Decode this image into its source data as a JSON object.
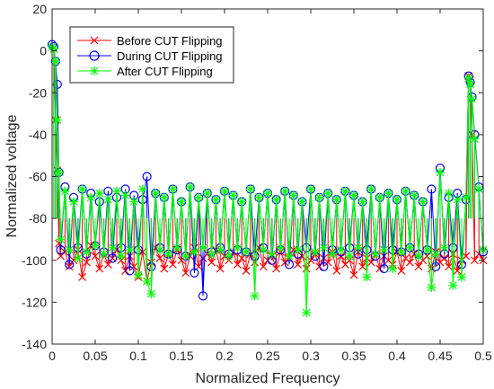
{
  "chart_data": {
    "type": "line",
    "title": "",
    "xlabel": "Normalized Frequency",
    "ylabel": "Normalized voltage",
    "xlim": [
      0,
      0.5
    ],
    "ylim": [
      -140,
      20
    ],
    "xticks": [
      0,
      0.05,
      0.1,
      0.15,
      0.2,
      0.25,
      0.3,
      0.35,
      0.4,
      0.45,
      0.5
    ],
    "xtick_labels": [
      "0",
      "0.05",
      "0.1",
      "0.15",
      "0.2",
      "0.25",
      "0.3",
      "0.35",
      "0.4",
      "0.45",
      "0.5"
    ],
    "yticks": [
      20,
      0,
      -20,
      -40,
      -60,
      -80,
      -100,
      -120,
      -140
    ],
    "ytick_labels": [
      "20",
      "0",
      "-20",
      "-40",
      "-60",
      "-80",
      "-100",
      "-120",
      "-140"
    ],
    "grid": false,
    "legend_position": "top-left",
    "baseline": -80,
    "series": [
      {
        "name": "Before CUT Flipping",
        "color": "#ff0000",
        "marker": "x",
        "x": [
          0.0,
          0.002,
          0.004,
          0.006,
          0.008,
          0.01,
          0.015,
          0.02,
          0.025,
          0.03,
          0.035,
          0.04,
          0.045,
          0.05,
          0.055,
          0.06,
          0.065,
          0.07,
          0.075,
          0.08,
          0.085,
          0.09,
          0.095,
          0.1,
          0.105,
          0.11,
          0.115,
          0.12,
          0.125,
          0.13,
          0.135,
          0.14,
          0.145,
          0.15,
          0.155,
          0.16,
          0.165,
          0.17,
          0.175,
          0.18,
          0.185,
          0.19,
          0.195,
          0.2,
          0.205,
          0.21,
          0.215,
          0.22,
          0.225,
          0.23,
          0.235,
          0.24,
          0.245,
          0.25,
          0.255,
          0.26,
          0.265,
          0.27,
          0.275,
          0.28,
          0.285,
          0.29,
          0.295,
          0.3,
          0.305,
          0.31,
          0.315,
          0.32,
          0.325,
          0.33,
          0.335,
          0.34,
          0.345,
          0.35,
          0.355,
          0.36,
          0.365,
          0.37,
          0.375,
          0.38,
          0.385,
          0.39,
          0.395,
          0.4,
          0.405,
          0.41,
          0.415,
          0.42,
          0.425,
          0.43,
          0.435,
          0.44,
          0.445,
          0.45,
          0.455,
          0.46,
          0.465,
          0.47,
          0.475,
          0.48,
          0.483,
          0.485,
          0.487,
          0.49,
          0.495,
          0.5
        ],
        "y": [
          2,
          1,
          -33,
          -57,
          -92,
          -98,
          -96,
          -103,
          -100,
          -95,
          -108,
          -101,
          -93,
          -98,
          -104,
          -97,
          -102,
          -99,
          -95,
          -100,
          -105,
          -98,
          -103,
          -108,
          -96,
          -110,
          -101,
          -94,
          -99,
          -104,
          -97,
          -102,
          -95,
          -100,
          -106,
          -98,
          -94,
          -103,
          -99,
          -97,
          -101,
          -95,
          -104,
          -98,
          -100,
          -96,
          -102,
          -99,
          -105,
          -97,
          -101,
          -94,
          -103,
          -100,
          -98,
          -104,
          -96,
          -101,
          -99,
          -95,
          -102,
          -98,
          -104,
          -100,
          -97,
          -103,
          -99,
          -101,
          -96,
          -105,
          -98,
          -102,
          -100,
          -107,
          -96,
          -103,
          -99,
          -101,
          -97,
          -104,
          -98,
          -100,
          -102,
          -96,
          -105,
          -99,
          -101,
          -97,
          -103,
          -100,
          -98,
          -104,
          -96,
          -101,
          -99,
          -103,
          -97,
          -105,
          -100,
          -98,
          -12,
          -14,
          -40,
          -100,
          -97,
          -100
        ]
      },
      {
        "name": "During CUT Flipping",
        "color": "#0000ff",
        "marker": "o",
        "x": [
          0.0,
          0.002,
          0.004,
          0.006,
          0.008,
          0.01,
          0.015,
          0.02,
          0.025,
          0.03,
          0.035,
          0.04,
          0.045,
          0.05,
          0.055,
          0.06,
          0.065,
          0.07,
          0.075,
          0.08,
          0.085,
          0.09,
          0.095,
          0.1,
          0.105,
          0.11,
          0.115,
          0.12,
          0.125,
          0.13,
          0.135,
          0.14,
          0.145,
          0.15,
          0.155,
          0.16,
          0.165,
          0.17,
          0.175,
          0.18,
          0.185,
          0.19,
          0.195,
          0.2,
          0.205,
          0.21,
          0.215,
          0.22,
          0.225,
          0.23,
          0.235,
          0.24,
          0.245,
          0.25,
          0.255,
          0.26,
          0.265,
          0.27,
          0.275,
          0.28,
          0.285,
          0.29,
          0.295,
          0.3,
          0.305,
          0.31,
          0.315,
          0.32,
          0.325,
          0.33,
          0.335,
          0.34,
          0.345,
          0.35,
          0.355,
          0.36,
          0.365,
          0.37,
          0.375,
          0.38,
          0.385,
          0.39,
          0.395,
          0.4,
          0.405,
          0.41,
          0.415,
          0.42,
          0.425,
          0.43,
          0.435,
          0.44,
          0.445,
          0.45,
          0.455,
          0.46,
          0.465,
          0.47,
          0.475,
          0.48,
          0.483,
          0.485,
          0.487,
          0.49,
          0.495,
          0.5
        ],
        "y": [
          3,
          2,
          -5,
          -16,
          -58,
          -95,
          -65,
          -102,
          -70,
          -94,
          -66,
          -97,
          -68,
          -93,
          -72,
          -96,
          -67,
          -99,
          -70,
          -94,
          -66,
          -105,
          -69,
          -95,
          -71,
          -60,
          -103,
          -68,
          -94,
          -70,
          -97,
          -66,
          -95,
          -72,
          -98,
          -65,
          -106,
          -70,
          -117,
          -68,
          -96,
          -71,
          -94,
          -67,
          -97,
          -69,
          -95,
          -72,
          -96,
          -66,
          -98,
          -70,
          -94,
          -68,
          -100,
          -71,
          -95,
          -67,
          -102,
          -69,
          -97,
          -72,
          -94,
          -66,
          -98,
          -70,
          -103,
          -68,
          -95,
          -71,
          -96,
          -67,
          -94,
          -69,
          -97,
          -72,
          -95,
          -66,
          -98,
          -70,
          -104,
          -68,
          -95,
          -71,
          -96,
          -67,
          -94,
          -69,
          -97,
          -72,
          -95,
          -66,
          -103,
          -56,
          -97,
          -70,
          -94,
          -68,
          -102,
          -71,
          -12,
          -15,
          -22,
          -40,
          -65,
          -96
        ]
      },
      {
        "name": "After CUT Flipping",
        "color": "#00ff00",
        "marker": "*",
        "x": [
          0.0,
          0.002,
          0.004,
          0.006,
          0.008,
          0.01,
          0.015,
          0.02,
          0.025,
          0.03,
          0.035,
          0.04,
          0.045,
          0.05,
          0.055,
          0.06,
          0.065,
          0.07,
          0.075,
          0.08,
          0.085,
          0.09,
          0.095,
          0.1,
          0.105,
          0.11,
          0.115,
          0.12,
          0.125,
          0.13,
          0.135,
          0.14,
          0.145,
          0.15,
          0.155,
          0.16,
          0.165,
          0.17,
          0.175,
          0.18,
          0.185,
          0.19,
          0.195,
          0.2,
          0.205,
          0.21,
          0.215,
          0.22,
          0.225,
          0.23,
          0.235,
          0.24,
          0.245,
          0.25,
          0.255,
          0.26,
          0.265,
          0.27,
          0.275,
          0.28,
          0.285,
          0.29,
          0.295,
          0.3,
          0.305,
          0.31,
          0.315,
          0.32,
          0.325,
          0.33,
          0.335,
          0.34,
          0.345,
          0.35,
          0.355,
          0.36,
          0.365,
          0.37,
          0.375,
          0.38,
          0.385,
          0.39,
          0.395,
          0.4,
          0.405,
          0.41,
          0.415,
          0.42,
          0.425,
          0.43,
          0.435,
          0.44,
          0.445,
          0.45,
          0.455,
          0.46,
          0.465,
          0.47,
          0.475,
          0.48,
          0.483,
          0.485,
          0.487,
          0.49,
          0.495,
          0.5
        ],
        "y": [
          2,
          1,
          -5,
          -33,
          -58,
          -90,
          -67,
          -95,
          -72,
          -99,
          -66,
          -96,
          -70,
          -93,
          -68,
          -97,
          -71,
          -94,
          -67,
          -98,
          -69,
          -95,
          -72,
          -107,
          -66,
          -110,
          -116,
          -68,
          -95,
          -70,
          -97,
          -66,
          -94,
          -72,
          -98,
          -65,
          -96,
          -70,
          -94,
          -68,
          -97,
          -71,
          -95,
          -67,
          -98,
          -69,
          -94,
          -72,
          -96,
          -66,
          -117,
          -70,
          -95,
          -68,
          -97,
          -71,
          -94,
          -67,
          -98,
          -69,
          -95,
          -72,
          -125,
          -66,
          -96,
          -70,
          -94,
          -68,
          -97,
          -71,
          -95,
          -67,
          -98,
          -69,
          -94,
          -72,
          -108,
          -66,
          -97,
          -70,
          -95,
          -68,
          -104,
          -71,
          -96,
          -67,
          -94,
          -69,
          -98,
          -72,
          -95,
          -113,
          -97,
          -58,
          -94,
          -68,
          -112,
          -71,
          -108,
          -70,
          -13,
          -16,
          -23,
          -42,
          -66,
          -95
        ]
      }
    ]
  }
}
